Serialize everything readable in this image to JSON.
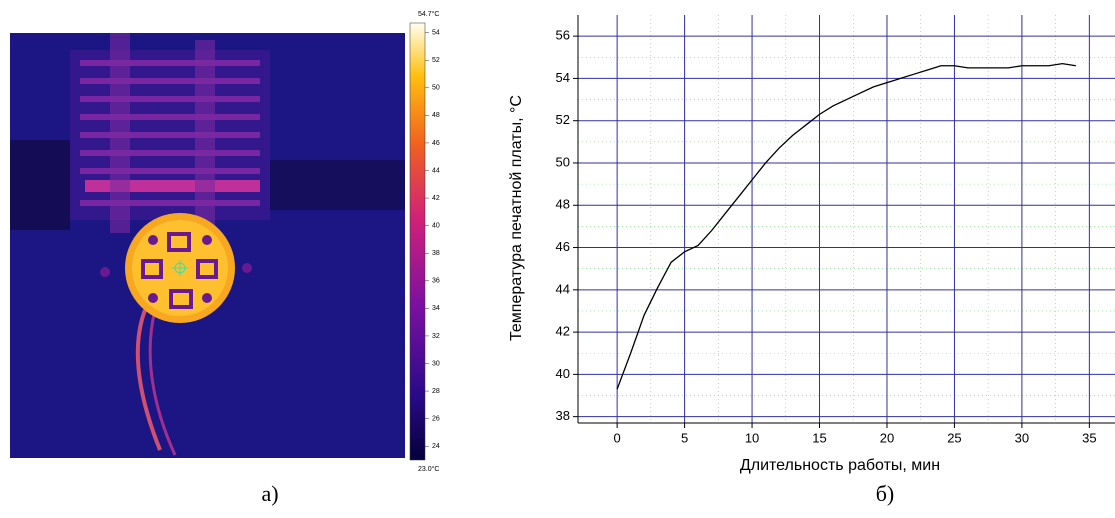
{
  "colorbar": {
    "lim": [
      {
        "value": 23.0,
        "label": "23.0°C"
      },
      {
        "value": 54.7,
        "label": "54.7°C"
      }
    ],
    "ticks": [
      24,
      26,
      28,
      30,
      32,
      34,
      36,
      38,
      40,
      42,
      44,
      46,
      48,
      50,
      52,
      54
    ]
  },
  "chart_data": {
    "type": "line",
    "x_label": "Длительность работы, мин",
    "y_label": "Температура печатной платы, °C",
    "x": [
      0,
      1,
      2,
      3,
      4,
      5,
      6,
      7,
      8,
      9,
      10,
      11,
      12,
      13,
      14,
      15,
      16,
      17,
      18,
      19,
      20,
      21,
      22,
      23,
      24,
      25,
      26,
      27,
      28,
      29,
      30,
      31,
      32,
      33,
      34
    ],
    "series": [
      {
        "color": "#000000",
        "values": [
          39.3,
          41.0,
          42.8,
          44.1,
          45.3,
          45.8,
          46.1,
          46.8,
          47.6,
          48.4,
          49.2,
          50.0,
          50.7,
          51.3,
          51.8,
          52.3,
          52.7,
          53.0,
          53.3,
          53.6,
          53.8,
          54.0,
          54.2,
          54.4,
          54.6,
          54.6,
          54.5,
          54.5,
          54.5,
          54.5,
          54.6,
          54.6,
          54.6,
          54.7,
          54.6
        ]
      }
    ],
    "xlim": [
      -2.9,
      36.9
    ],
    "ylim": [
      37.7,
      57
    ],
    "xticks": [
      0,
      5,
      10,
      15,
      20,
      25,
      30,
      35
    ],
    "yticks": [
      38,
      40,
      42,
      44,
      46,
      48,
      50,
      52,
      54,
      56
    ],
    "grid": true,
    "minor_grid": true
  },
  "captions": [
    "а)",
    "б)"
  ]
}
